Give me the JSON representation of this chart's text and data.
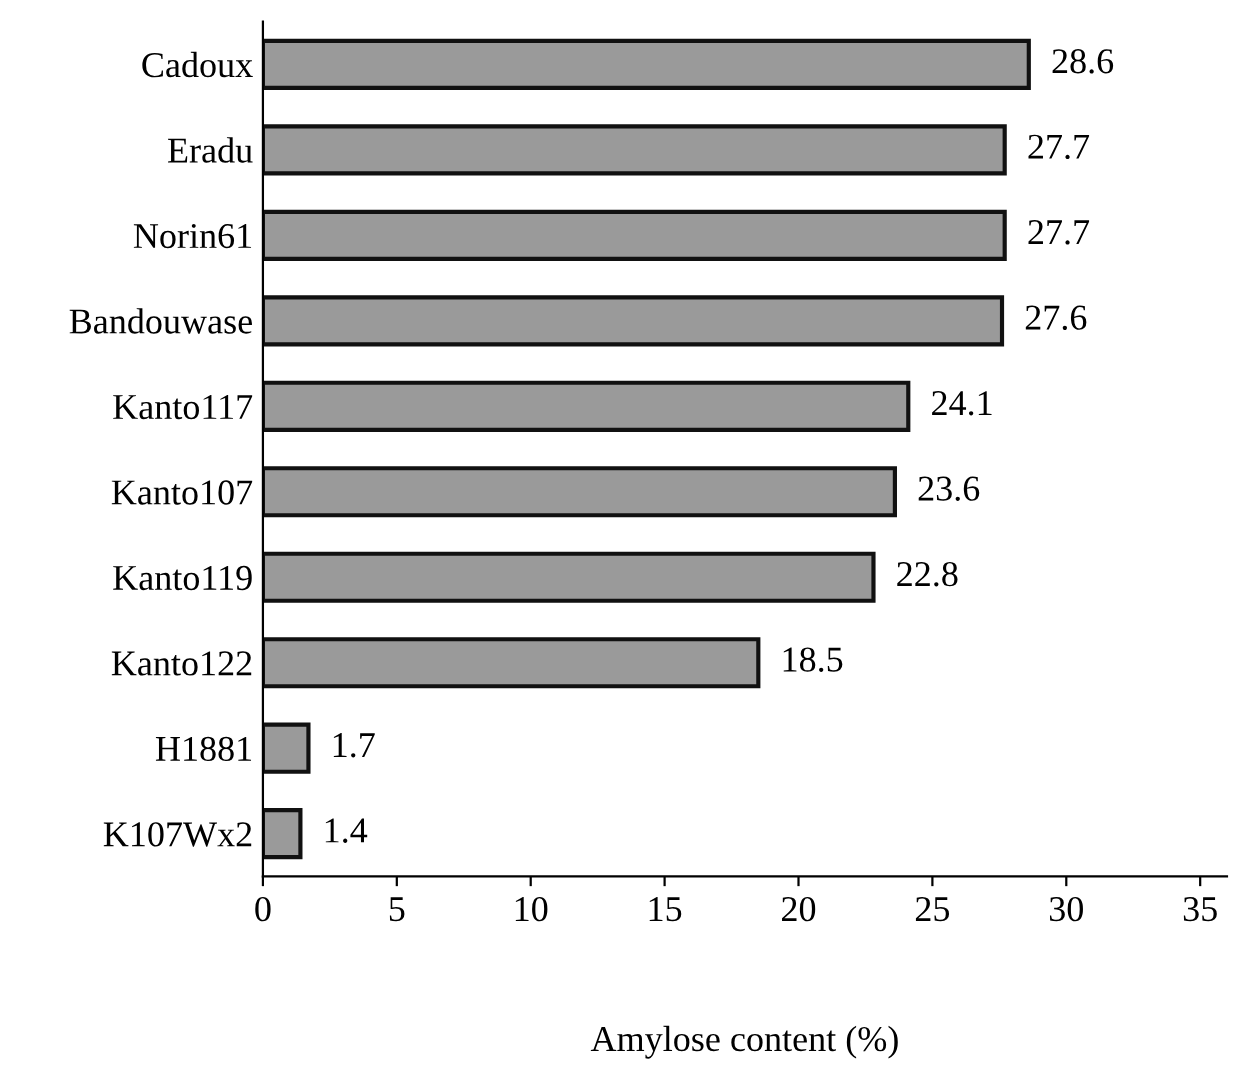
{
  "chart_data": {
    "type": "bar",
    "orientation": "horizontal",
    "xlabel": "Amylose content (%)",
    "categories": [
      "Cadoux",
      "Eradu",
      "Norin61",
      "Bandouwase",
      "Kanto117",
      "Kanto107",
      "Kanto119",
      "Kanto122",
      "H1881",
      "K107Wx2"
    ],
    "values": [
      28.6,
      27.7,
      27.7,
      27.6,
      24.1,
      23.6,
      22.8,
      18.5,
      1.7,
      1.4
    ],
    "color": "#9a9a9a",
    "data_labels": true,
    "xlim": [
      0,
      36
    ],
    "xticks": [
      0,
      5,
      10,
      15,
      20,
      25,
      30,
      35
    ],
    "grid": false,
    "legend": false
  }
}
